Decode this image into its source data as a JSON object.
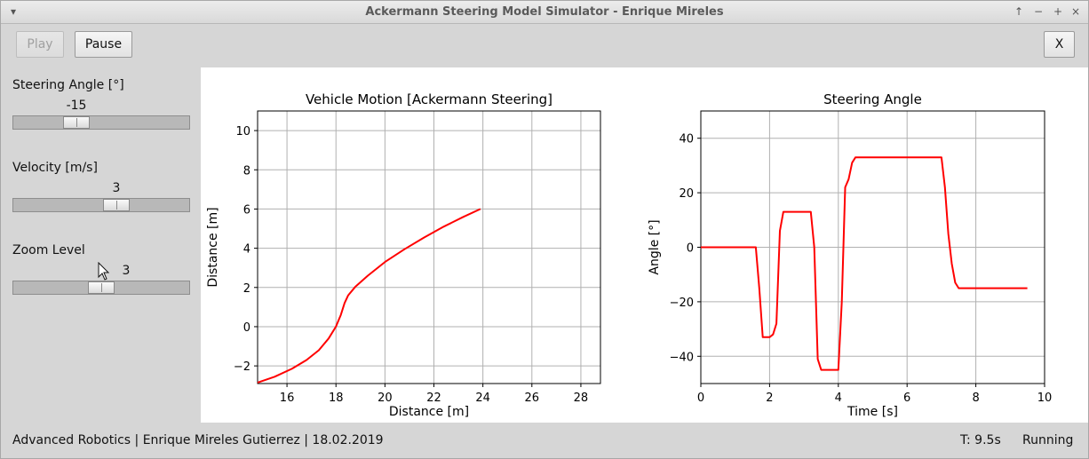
{
  "window": {
    "title": "Ackermann Steering Model Simulator - Enrique Mireles",
    "menu_icon": "chevron-down-icon",
    "controls": [
      "arrow-up-icon",
      "minimize-icon",
      "maximize-icon",
      "close-icon"
    ]
  },
  "toolbar": {
    "play_label": "Play",
    "pause_label": "Pause",
    "exit_label": "X"
  },
  "controls": {
    "steering": {
      "label": "Steering Angle [°]",
      "value": "-15",
      "min": -45,
      "max": 45
    },
    "velocity": {
      "label": "Velocity [m/s]",
      "value": "3",
      "min": 0,
      "max": 5
    },
    "zoom": {
      "label": "Zoom Level",
      "value": "3",
      "min": 1,
      "max": 5
    }
  },
  "status": {
    "credits": "Advanced Robotics | Enrique Mireles Gutierrez | 18.02.2019",
    "time": "T: 9.5s",
    "state": "Running"
  },
  "chart_data": [
    {
      "type": "line",
      "title": "Vehicle Motion [Ackermann Steering]",
      "xlabel": "Distance [m]",
      "ylabel": "Distance [m]",
      "xlim": [
        14.8,
        28.8
      ],
      "ylim": [
        -2.9,
        11.0
      ],
      "xticks": [
        16,
        18,
        20,
        22,
        24,
        26,
        28
      ],
      "yticks": [
        -2,
        0,
        2,
        4,
        6,
        8,
        10
      ],
      "grid": true,
      "color": "#ff0000",
      "x": [
        14.8,
        15.5,
        16.2,
        16.8,
        17.3,
        17.7,
        18.0,
        18.2,
        18.35,
        18.5,
        18.8,
        19.3,
        20.0,
        20.8,
        21.6,
        22.4,
        23.2,
        23.9
      ],
      "y": [
        -2.85,
        -2.55,
        -2.15,
        -1.7,
        -1.2,
        -0.6,
        0.0,
        0.6,
        1.2,
        1.6,
        2.05,
        2.6,
        3.3,
        3.95,
        4.55,
        5.1,
        5.6,
        6.0
      ]
    },
    {
      "type": "line",
      "title": "Steering Angle",
      "xlabel": "Time [s]",
      "ylabel": "Angle [°]",
      "xlim": [
        0,
        10
      ],
      "ylim": [
        -50,
        50
      ],
      "xticks": [
        0,
        2,
        4,
        6,
        8,
        10
      ],
      "yticks": [
        -40,
        -20,
        0,
        20,
        40
      ],
      "grid": true,
      "color": "#ff0000",
      "x": [
        0,
        1.6,
        1.7,
        1.8,
        2.0,
        2.1,
        2.2,
        2.3,
        2.4,
        3.2,
        3.3,
        3.4,
        3.5,
        3.6,
        4.0,
        4.1,
        4.2,
        4.3,
        4.4,
        4.5,
        4.6,
        7.0,
        7.1,
        7.2,
        7.3,
        7.4,
        7.5,
        9.5
      ],
      "y": [
        0,
        0,
        -15,
        -33,
        -33,
        -32,
        -28,
        6,
        13,
        13,
        0,
        -41,
        -45,
        -45,
        -45,
        -20,
        22,
        25,
        31,
        33,
        33,
        33,
        22,
        5,
        -6,
        -13,
        -15,
        -15
      ]
    }
  ]
}
